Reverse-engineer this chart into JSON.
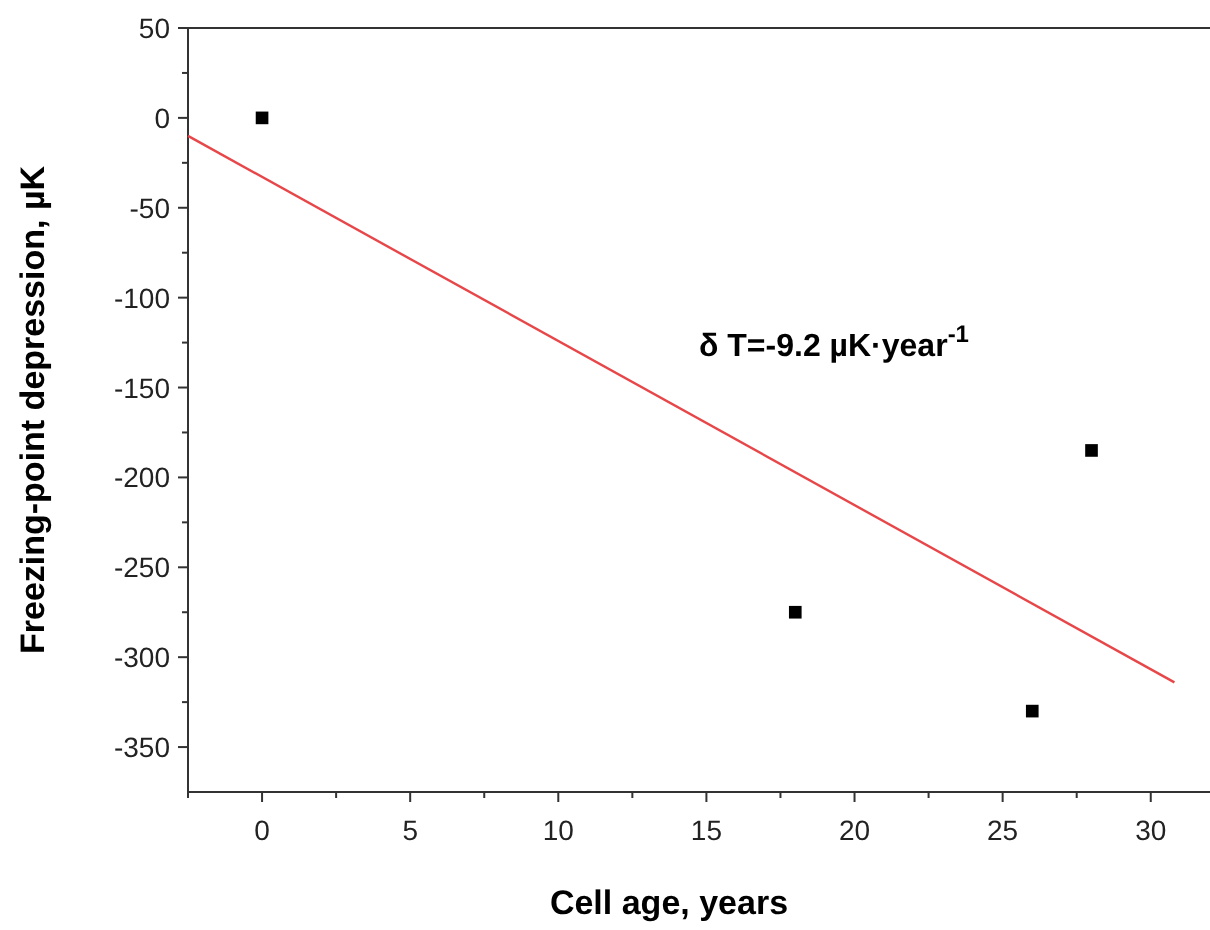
{
  "chart_data": {
    "type": "scatter",
    "xlabel": "Cell age, years",
    "ylabel": "Freezing-point depression, µK",
    "xlim": [
      -2.5,
      32
    ],
    "ylim": [
      -375,
      50
    ],
    "xticks": [
      {
        "value": -2.5,
        "label": null
      },
      0,
      {
        "value": 2.5,
        "label": null
      },
      5,
      {
        "value": 7.5,
        "label": null
      },
      10,
      {
        "value": 12.5,
        "label": null
      },
      15,
      {
        "value": 17.5,
        "label": null
      },
      20,
      {
        "value": 22.5,
        "label": null
      },
      25,
      {
        "value": 27.5,
        "label": null
      },
      30
    ],
    "yticks": [
      -350,
      {
        "value": -325,
        "label": null
      },
      -300,
      {
        "value": -275,
        "label": null
      },
      -250,
      {
        "value": -225,
        "label": null
      },
      -200,
      {
        "value": -175,
        "label": null
      },
      -150,
      {
        "value": -125,
        "label": null
      },
      -100,
      {
        "value": -75,
        "label": null
      },
      -50,
      {
        "value": -25,
        "label": null
      },
      0,
      {
        "value": 25,
        "label": null
      },
      50
    ],
    "series": [
      {
        "marker": "square",
        "color": "#000000",
        "x": [
          0,
          18,
          26,
          28
        ],
        "values": [
          0,
          -275,
          -330,
          -185
        ]
      },
      {
        "type": "line",
        "color": "#e8474a",
        "x": [
          -2.5,
          30.8
        ],
        "values": [
          -10,
          -314
        ]
      }
    ],
    "annotations": [
      "δ T=-9.2 µK·year$^{-1}$"
    ]
  }
}
